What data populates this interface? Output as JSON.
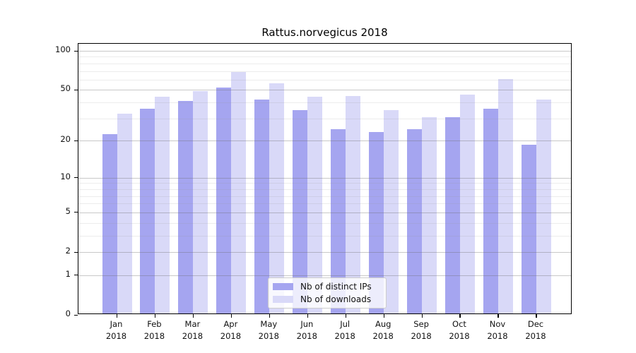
{
  "figure": {
    "background": "#ffffff",
    "axis_color": "#000000"
  },
  "chart_data": {
    "type": "bar",
    "title": "Rattus.norvegicus 2018",
    "y_scale": "log1p",
    "grid": true,
    "categories": [
      "Jan",
      "Feb",
      "Mar",
      "Apr",
      "May",
      "Jun",
      "Jul",
      "Aug",
      "Sep",
      "Oct",
      "Nov",
      "Dec"
    ],
    "year_line": "2018",
    "series": [
      {
        "name": "Nb of distinct IPs",
        "color": "#a5a5f0",
        "values": [
          22,
          35,
          40,
          51,
          41,
          34,
          24,
          23,
          24,
          30,
          35,
          18
        ]
      },
      {
        "name": "Nb of downloads",
        "color": "#d9d9f8",
        "values": [
          32,
          43,
          48,
          67,
          55,
          43,
          44,
          34,
          30,
          45,
          59,
          41
        ]
      }
    ],
    "yticks": [
      0,
      1,
      2,
      5,
      10,
      20,
      50,
      100
    ],
    "y_minor_ticks": [
      3,
      4,
      6,
      7,
      8,
      9,
      30,
      40,
      60,
      70,
      80,
      90
    ],
    "ylim": [
      0,
      110
    ],
    "xlabel": "",
    "ylabel": "",
    "legend": {
      "position": "bottom-center",
      "entries": [
        "Nb of distinct IPs",
        "Nb of downloads"
      ]
    }
  }
}
